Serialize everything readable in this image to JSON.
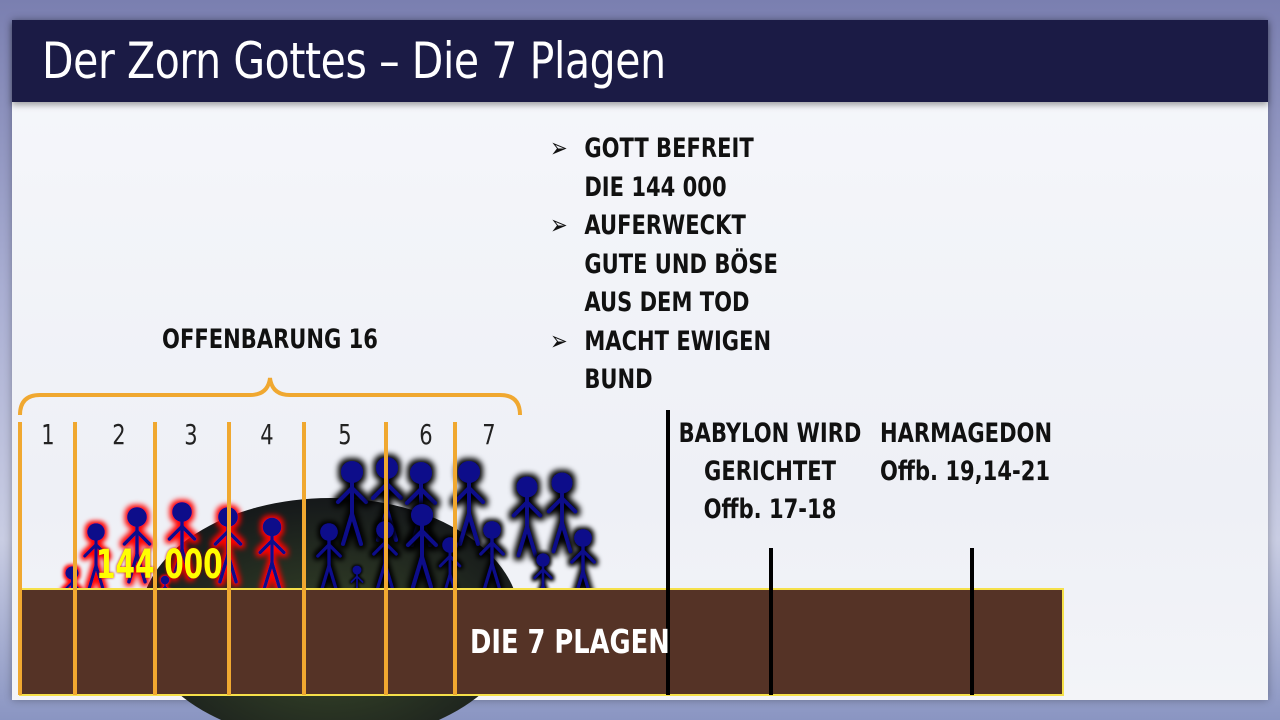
{
  "title": "Der Zorn Gottes – Die 7 Plagen",
  "bullets": [
    {
      "lines": [
        "GOTT BEFREIT",
        "DIE 144 000"
      ]
    },
    {
      "lines": [
        "AUFERWECKT",
        "GUTE UND BÖSE",
        "AUS DEM TOD"
      ]
    },
    {
      "lines": [
        "MACHT EWIGEN",
        "BUND"
      ]
    }
  ],
  "bullet_icon": "arrowhead-bullet-icon",
  "brace_label": "OFFENBARUNG 16",
  "plague_numbers": [
    "1",
    "2",
    "3",
    "4",
    "5",
    "6",
    "7"
  ],
  "group_label": "144 000",
  "ground_label": "DIE 7 PLAGEN",
  "babylon": {
    "line1": "BABYLON WIRD",
    "line2": "GERICHTET",
    "ref": "Offb. 17-18"
  },
  "harmagedon": {
    "line1": "HARMAGEDON",
    "ref": "Offb. 19,14-21"
  },
  "colors": {
    "title_bar": "#1b1b45",
    "ground": "#553326",
    "dividers": "#f0a830",
    "redeemed": "#e01010",
    "people": "#0a0a8a"
  }
}
